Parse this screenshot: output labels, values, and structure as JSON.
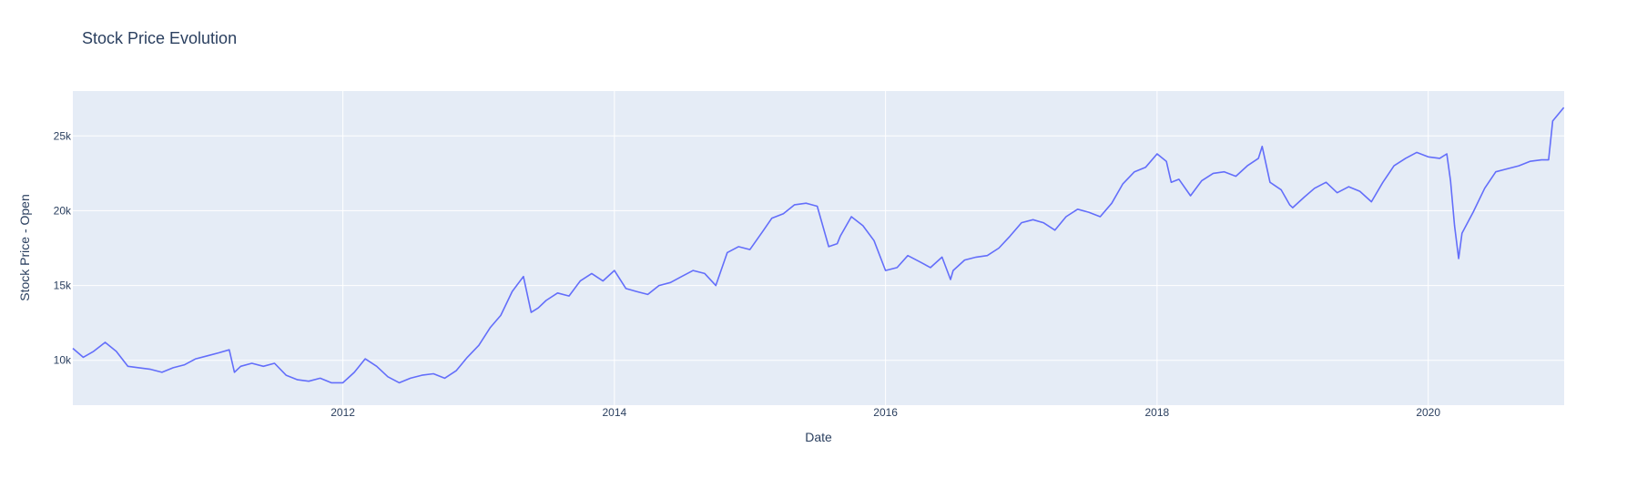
{
  "chart_data": {
    "type": "line",
    "title": "Stock Price Evolution",
    "xlabel": "Date",
    "ylabel": "Stock Price - Open",
    "xlim": [
      "2010-01-04",
      "2021-01-01"
    ],
    "ylim": [
      7000,
      28000
    ],
    "x_ticks": [
      {
        "value": "2012-01-01",
        "label": "2012"
      },
      {
        "value": "2014-01-01",
        "label": "2014"
      },
      {
        "value": "2016-01-01",
        "label": "2016"
      },
      {
        "value": "2018-01-01",
        "label": "2018"
      },
      {
        "value": "2020-01-01",
        "label": "2020"
      }
    ],
    "y_ticks": [
      {
        "value": 10000,
        "label": "10k"
      },
      {
        "value": 15000,
        "label": "15k"
      },
      {
        "value": 20000,
        "label": "20k"
      },
      {
        "value": 25000,
        "label": "25k"
      }
    ],
    "grid": true,
    "colors": {
      "line": "#636efa",
      "plot_bg": "#e5ecf6",
      "grid": "#ffffff",
      "text": "#2a3f5f"
    },
    "series": [
      {
        "x": [
          "2010-01-04",
          "2010-02-01",
          "2010-03-01",
          "2010-04-01",
          "2010-05-01",
          "2010-06-01",
          "2010-07-01",
          "2010-08-01",
          "2010-09-01",
          "2010-10-01",
          "2010-11-01",
          "2010-12-01",
          "2011-01-01",
          "2011-02-01",
          "2011-03-01",
          "2011-03-15",
          "2011-04-01",
          "2011-05-01",
          "2011-06-01",
          "2011-07-01",
          "2011-08-01",
          "2011-09-01",
          "2011-10-01",
          "2011-11-01",
          "2011-12-01",
          "2012-01-01",
          "2012-02-01",
          "2012-03-01",
          "2012-04-01",
          "2012-05-01",
          "2012-06-01",
          "2012-07-01",
          "2012-08-01",
          "2012-09-01",
          "2012-10-01",
          "2012-11-01",
          "2012-12-01",
          "2013-01-01",
          "2013-02-01",
          "2013-03-01",
          "2013-04-01",
          "2013-05-01",
          "2013-05-22",
          "2013-06-10",
          "2013-07-01",
          "2013-08-01",
          "2013-09-01",
          "2013-10-01",
          "2013-11-01",
          "2013-12-01",
          "2014-01-01",
          "2014-02-01",
          "2014-03-01",
          "2014-04-01",
          "2014-05-01",
          "2014-06-01",
          "2014-07-01",
          "2014-08-01",
          "2014-09-01",
          "2014-10-01",
          "2014-11-01",
          "2014-12-01",
          "2015-01-01",
          "2015-02-01",
          "2015-03-01",
          "2015-04-01",
          "2015-05-01",
          "2015-06-01",
          "2015-07-01",
          "2015-08-01",
          "2015-08-24",
          "2015-09-01",
          "2015-10-01",
          "2015-11-01",
          "2015-12-01",
          "2016-01-01",
          "2016-02-01",
          "2016-03-01",
          "2016-04-01",
          "2016-05-01",
          "2016-06-01",
          "2016-06-24",
          "2016-07-01",
          "2016-08-01",
          "2016-09-01",
          "2016-10-01",
          "2016-11-01",
          "2016-12-01",
          "2017-01-01",
          "2017-02-01",
          "2017-03-01",
          "2017-04-01",
          "2017-05-01",
          "2017-06-01",
          "2017-07-01",
          "2017-08-01",
          "2017-09-01",
          "2017-10-01",
          "2017-11-01",
          "2017-12-01",
          "2018-01-01",
          "2018-01-26",
          "2018-02-08",
          "2018-03-01",
          "2018-04-01",
          "2018-05-01",
          "2018-06-01",
          "2018-07-01",
          "2018-08-01",
          "2018-09-01",
          "2018-10-01",
          "2018-10-11",
          "2018-11-01",
          "2018-12-01",
          "2018-12-24",
          "2019-01-01",
          "2019-02-01",
          "2019-03-01",
          "2019-04-01",
          "2019-05-01",
          "2019-06-01",
          "2019-07-01",
          "2019-08-01",
          "2019-09-01",
          "2019-10-01",
          "2019-11-01",
          "2019-12-01",
          "2020-01-01",
          "2020-02-01",
          "2020-02-20",
          "2020-03-01",
          "2020-03-12",
          "2020-03-23",
          "2020-04-01",
          "2020-05-01",
          "2020-06-01",
          "2020-07-01",
          "2020-08-01",
          "2020-09-01",
          "2020-10-01",
          "2020-11-01",
          "2020-11-20",
          "2020-12-01",
          "2020-12-31"
        ],
        "y": [
          10800,
          10200,
          10600,
          11200,
          10600,
          9600,
          9500,
          9400,
          9200,
          9500,
          9700,
          10100,
          10300,
          10500,
          10700,
          9200,
          9600,
          9800,
          9600,
          9800,
          9000,
          8700,
          8600,
          8800,
          8500,
          8500,
          9200,
          10100,
          9600,
          8900,
          8500,
          8800,
          9000,
          9100,
          8800,
          9300,
          10200,
          11000,
          12200,
          13000,
          14600,
          15600,
          13200,
          13500,
          14000,
          14500,
          14300,
          15300,
          15800,
          15300,
          16000,
          14800,
          14600,
          14400,
          15000,
          15200,
          15600,
          16000,
          15800,
          15000,
          17200,
          17600,
          17400,
          18500,
          19500,
          19800,
          20400,
          20500,
          20300,
          17600,
          17800,
          18300,
          19600,
          19000,
          18000,
          16000,
          16200,
          17000,
          16600,
          16200,
          16900,
          15400,
          16000,
          16700,
          16900,
          17000,
          17500,
          18300,
          19200,
          19400,
          19200,
          18700,
          19600,
          20100,
          19900,
          19600,
          20500,
          21800,
          22600,
          22900,
          23800,
          23300,
          21900,
          22100,
          21000,
          22000,
          22500,
          22600,
          22300,
          23000,
          23500,
          24300,
          21900,
          21400,
          20400,
          20200,
          20900,
          21500,
          21900,
          21200,
          21600,
          21300,
          20600,
          21900,
          23000,
          23500,
          23900,
          23600,
          23500,
          23800,
          22000,
          19000,
          16800,
          18500,
          19900,
          21500,
          22600,
          22800,
          23000,
          23300,
          23400,
          23400,
          26000,
          26900
        ]
      }
    ]
  }
}
